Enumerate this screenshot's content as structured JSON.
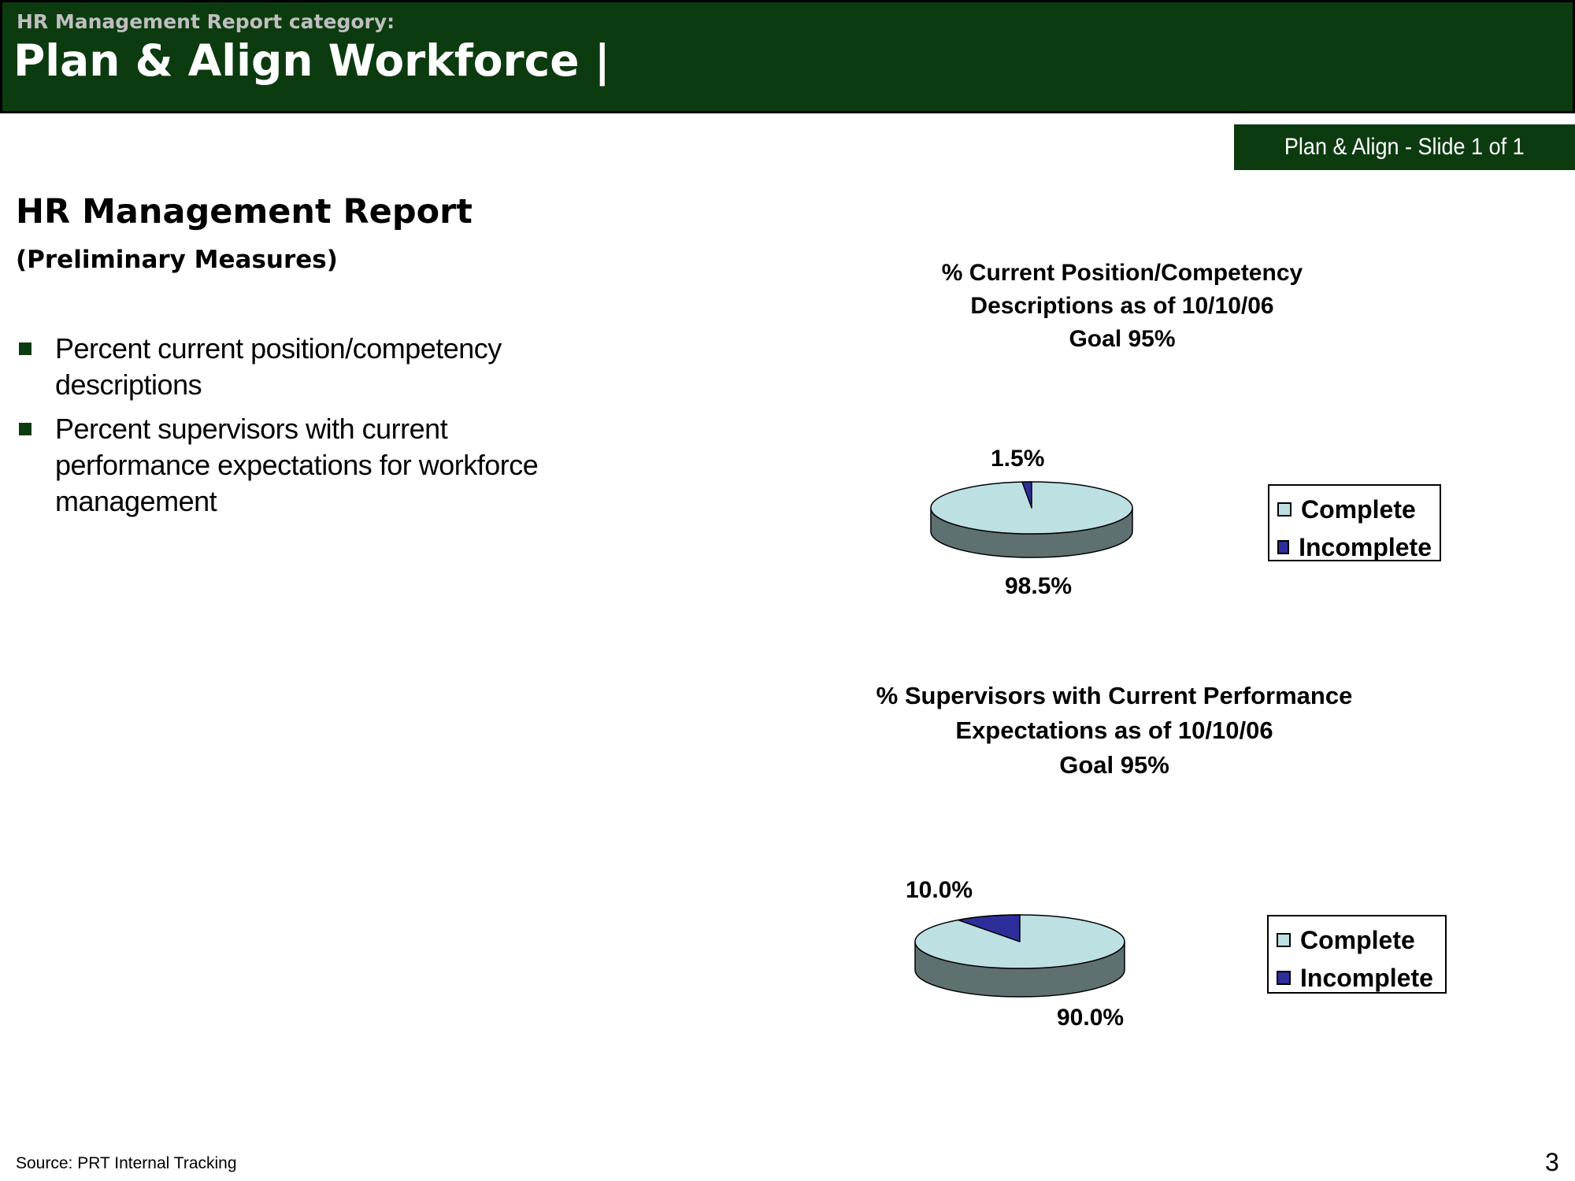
{
  "header": {
    "kicker": "HR Management Report category:",
    "title": "Plan & Align Workforce |"
  },
  "slide_tag": "Plan & Align - Slide 1 of 1",
  "report": {
    "title": "HR Management Report",
    "subtitle": "(Preliminary Measures)",
    "bullets": [
      "Percent current position/competency descriptions",
      "Percent supervisors with current performance expectations for workforce management"
    ]
  },
  "colors": {
    "header_green": "#0d3b10",
    "complete": "#bde0e3",
    "incomplete": "#2e2e9a",
    "side": "#5f7070"
  },
  "chart_data": [
    {
      "type": "pie",
      "title_lines": [
        "% Current Position/Competency",
        "Descriptions as of 10/10/06",
        "Goal 95%"
      ],
      "categories": [
        "Complete",
        "Incomplete"
      ],
      "values": [
        98.5,
        1.5
      ],
      "data_labels": [
        "98.5%",
        "1.5%"
      ],
      "legend": [
        "Complete",
        "Incomplete"
      ],
      "legend_position": "right"
    },
    {
      "type": "pie",
      "title_lines": [
        "% Supervisors with Current Performance",
        "Expectations as of 10/10/06",
        "Goal 95%"
      ],
      "categories": [
        "Complete",
        "Incomplete"
      ],
      "values": [
        90.0,
        10.0
      ],
      "data_labels": [
        "90.0%",
        "10.0%"
      ],
      "legend": [
        "Complete",
        "Incomplete"
      ],
      "legend_position": "right"
    }
  ],
  "footer": {
    "source": "Source: PRT Internal Tracking",
    "page_number": "3"
  }
}
